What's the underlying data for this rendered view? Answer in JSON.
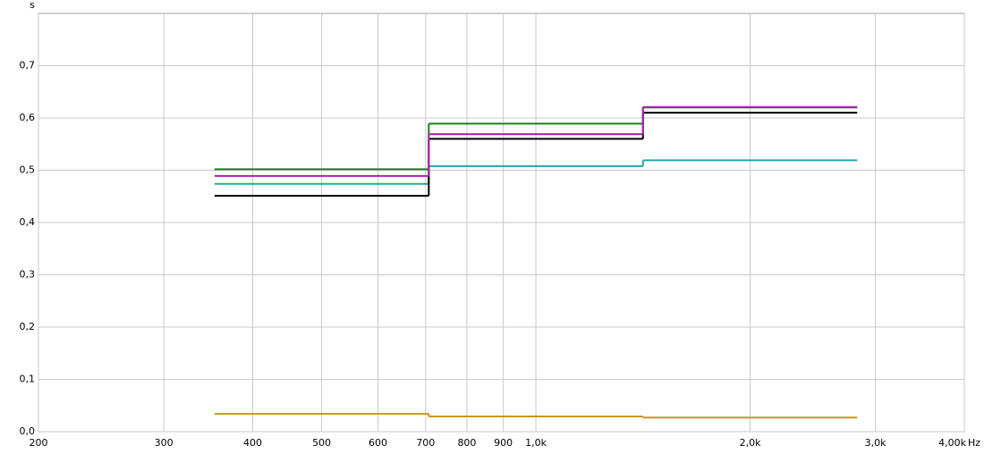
{
  "chart_data": {
    "type": "step",
    "xlabel": "Hz",
    "ylabel": "s",
    "x": [
      500,
      1000,
      2000
    ],
    "series": [
      {
        "color": "#c8961e",
        "values": [
          0.034,
          0.029,
          0.027
        ]
      },
      {
        "color": "#20a8a8",
        "values": [
          0.474,
          0.508,
          0.519
        ]
      },
      {
        "color": "#000000",
        "values": [
          0.451,
          0.56,
          0.61
        ]
      },
      {
        "color": "#1a7f1a",
        "values": [
          0.502,
          0.589,
          0.62
        ]
      },
      {
        "color": "#b01fb0",
        "values": [
          0.489,
          0.569,
          0.621
        ]
      }
    ],
    "xscale": "log",
    "xlim": [
      200,
      4000
    ],
    "xticks": [
      200,
      300,
      400,
      500,
      600,
      700,
      800,
      900,
      {
        "value": 1000,
        "label": "1,0k"
      },
      {
        "value": 2000,
        "label": "2,0k"
      },
      {
        "value": 3000,
        "label": "3,0k"
      },
      {
        "value": 4000,
        "label": "4,00k"
      }
    ],
    "ylim": [
      0,
      0.8
    ],
    "yticks": [
      {
        "value": 0,
        "label": "0,0"
      },
      {
        "value": 0.1,
        "label": "0,1"
      },
      {
        "value": 0.2,
        "label": "0,2"
      },
      {
        "value": 0.3,
        "label": "0,3"
      },
      {
        "value": 0.4,
        "label": "0,4"
      },
      {
        "value": 0.5,
        "label": "0,5"
      },
      {
        "value": 0.6,
        "label": "0,6"
      },
      {
        "value": 0.7,
        "label": "0,7"
      }
    ],
    "grid": true
  }
}
